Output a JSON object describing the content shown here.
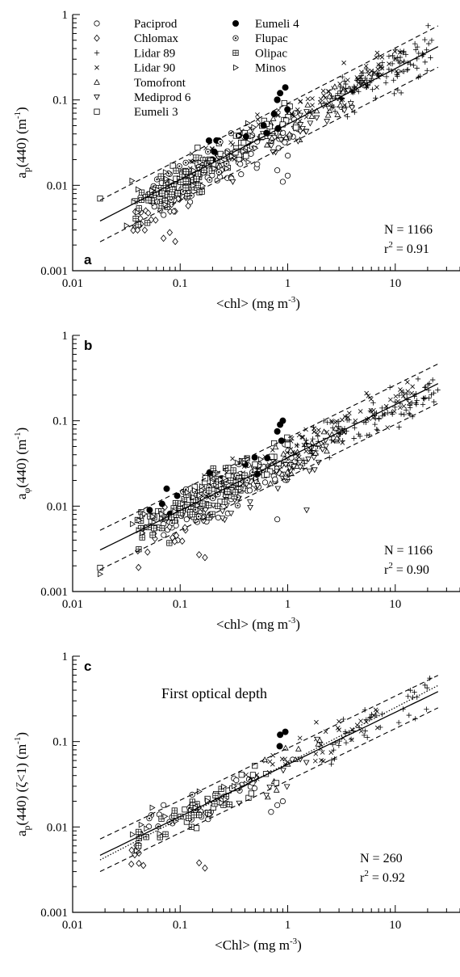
{
  "figure": {
    "panels": [
      {
        "letter": "a",
        "subtitle": "",
        "ylabel": {
          "main": "a",
          "sub": "p",
          "rest": "(440) (m",
          "sup": "-1",
          "close": ")"
        },
        "xlabel": {
          "main": "<chl> (mg m",
          "sup": "-3",
          "close": ")"
        },
        "stats": {
          "n": "N = 1166",
          "r2_pre": "r",
          "r2_sup": "2",
          "r2_post": " = 0.91"
        }
      },
      {
        "letter": "b",
        "subtitle": "",
        "ylabel": {
          "main": "a",
          "sub": "φ",
          "rest": "(440) (m",
          "sup": "-1",
          "close": ")"
        },
        "xlabel": {
          "main": "<chl> (mg m",
          "sup": "-3",
          "close": ")"
        },
        "stats": {
          "n": "N = 1166",
          "r2_pre": "r",
          "r2_sup": "2",
          "r2_post": " = 0.90"
        }
      },
      {
        "letter": "c",
        "subtitle": "First optical depth",
        "ylabel": {
          "main": "a",
          "sub": "p",
          "rest": "(440)  (ζ<1) (m",
          "sup": "-1",
          "close": ")"
        },
        "xlabel": {
          "main": "<Chl> (mg m",
          "sup": "-3",
          "close": ")"
        },
        "stats": {
          "n": "N = 260",
          "r2_pre": "r",
          "r2_sup": "2",
          "r2_post": " = 0.92"
        }
      }
    ],
    "legend": {
      "col1": [
        {
          "name": "Paciprod",
          "marker": "circle-open"
        },
        {
          "name": "Chlomax",
          "marker": "diamond-open"
        },
        {
          "name": "Lidar 89",
          "marker": "plus"
        },
        {
          "name": "Lidar 90",
          "marker": "cross"
        },
        {
          "name": "Tomofront",
          "marker": "triangle-up-open"
        },
        {
          "name": "Mediprod 6",
          "marker": "triangle-down-open"
        },
        {
          "name": "Eumeli 3",
          "marker": "square-open"
        }
      ],
      "col2": [
        {
          "name": "Eumeli 4",
          "marker": "circle-filled"
        },
        {
          "name": "Flupac",
          "marker": "circle-dotted"
        },
        {
          "name": "Olipac",
          "marker": "square-grid"
        },
        {
          "name": "Minos",
          "marker": "triangle-right-open"
        }
      ]
    }
  },
  "chart_data": [
    {
      "type": "scatter",
      "panel": "a",
      "xlabel": "<chl> (mg m-3)",
      "ylabel": "ap(440) (m-1)",
      "xscale": "log",
      "yscale": "log",
      "xlim": [
        0.01,
        40
      ],
      "ylim": [
        0.001,
        1
      ],
      "xticks": [
        0.01,
        0.1,
        1,
        10
      ],
      "xtick_labels": [
        "0.01",
        "0.1",
        "1",
        "10"
      ],
      "yticks": [
        0.001,
        0.01,
        0.1,
        1
      ],
      "ytick_labels": [
        "0.001",
        "0.01",
        "0.1",
        "1"
      ],
      "grid": false,
      "legend_position": "top-left",
      "fit": {
        "coef": 0.052,
        "exp": 0.65,
        "x_range": [
          0.018,
          25
        ],
        "style": "solid"
      },
      "confidence_band": {
        "factor": 1.75,
        "style": "dashed"
      },
      "n": 1166,
      "r2": 0.91,
      "series": [
        {
          "name": "Paciprod",
          "marker": "circle-open",
          "x_range": [
            0.04,
            1.3
          ],
          "resid_mean": -0.2,
          "points": 70,
          "highlights": [
            [
              0.9,
              0.011
            ],
            [
              0.8,
              0.015
            ],
            [
              1.0,
              0.013
            ],
            [
              0.3,
              0.012
            ]
          ]
        },
        {
          "name": "Chlomax",
          "marker": "diamond-open",
          "x_range": [
            0.035,
            0.12
          ],
          "resid_mean": -0.35,
          "points": 35,
          "highlights": [
            [
              0.08,
              0.0028
            ],
            [
              0.09,
              0.0022
            ],
            [
              0.07,
              0.0024
            ]
          ]
        },
        {
          "name": "Lidar 89",
          "marker": "plus",
          "x_range": [
            2.5,
            22
          ],
          "resid_mean": 0.0,
          "points": 110,
          "highlights": []
        },
        {
          "name": "Lidar 90",
          "marker": "cross",
          "x_range": [
            0.12,
            12
          ],
          "resid_mean": 0.12,
          "points": 120,
          "highlights": []
        },
        {
          "name": "Tomofront",
          "marker": "triangle-up-open",
          "x_range": [
            0.5,
            4
          ],
          "resid_mean": -0.05,
          "points": 30,
          "highlights": []
        },
        {
          "name": "Mediprod 6",
          "marker": "triangle-down-open",
          "x_range": [
            0.2,
            4
          ],
          "resid_mean": -0.15,
          "points": 40,
          "highlights": []
        },
        {
          "name": "Eumeli 3",
          "marker": "square-open",
          "x_range": [
            0.05,
            1.2
          ],
          "resid_mean": 0.05,
          "points": 55,
          "highlights": [
            [
              0.018,
              0.007
            ]
          ]
        },
        {
          "name": "Eumeli 4",
          "marker": "circle-filled",
          "x_range": [
            0.15,
            1.0
          ],
          "resid_mean": 0.2,
          "points": 12,
          "highlights": [
            [
              0.85,
              0.12
            ],
            [
              0.8,
              0.1
            ],
            [
              0.95,
              0.14
            ],
            [
              0.2,
              0.02
            ]
          ]
        },
        {
          "name": "Flupac",
          "marker": "circle-dotted",
          "x_range": [
            0.05,
            0.3
          ],
          "resid_mean": 0.0,
          "points": 30,
          "highlights": []
        },
        {
          "name": "Olipac",
          "marker": "square-grid",
          "x_range": [
            0.035,
            0.2
          ],
          "resid_mean": -0.1,
          "points": 70,
          "highlights": []
        },
        {
          "name": "Minos",
          "marker": "triangle-right-open",
          "x_range": [
            0.03,
            0.5
          ],
          "resid_mean": 0.05,
          "points": 40,
          "highlights": []
        }
      ]
    },
    {
      "type": "scatter",
      "panel": "b",
      "xlabel": "<chl> (mg m-3)",
      "ylabel": "aφ(440) (m-1)",
      "xscale": "log",
      "yscale": "log",
      "xlim": [
        0.01,
        40
      ],
      "ylim": [
        0.001,
        1
      ],
      "xticks": [
        0.01,
        0.1,
        1,
        10
      ],
      "xtick_labels": [
        "0.01",
        "0.1",
        "1",
        "10"
      ],
      "yticks": [
        0.001,
        0.01,
        0.1,
        1
      ],
      "ytick_labels": [
        "0.001",
        "0.01",
        "0.1",
        "1"
      ],
      "grid": false,
      "fit": {
        "coef": 0.037,
        "exp": 0.62,
        "x_range": [
          0.018,
          25
        ],
        "style": "solid"
      },
      "confidence_band": {
        "factor": 1.7,
        "style": "dashed"
      },
      "n": 1166,
      "r2": 0.9,
      "series": [
        {
          "name": "Paciprod",
          "marker": "circle-open",
          "x_range": [
            0.05,
            1.3
          ],
          "resid_mean": -0.12,
          "points": 70,
          "highlights": [
            [
              0.8,
              0.007
            ]
          ]
        },
        {
          "name": "Chlomax",
          "marker": "diamond-open",
          "x_range": [
            0.04,
            0.2
          ],
          "resid_mean": -0.3,
          "points": 30,
          "highlights": [
            [
              0.15,
              0.0027
            ],
            [
              0.17,
              0.0025
            ]
          ]
        },
        {
          "name": "Lidar 89",
          "marker": "plus",
          "x_range": [
            1.2,
            25
          ],
          "resid_mean": -0.05,
          "points": 110,
          "highlights": []
        },
        {
          "name": "Lidar 90",
          "marker": "cross",
          "x_range": [
            0.15,
            15
          ],
          "resid_mean": 0.1,
          "points": 120,
          "highlights": []
        },
        {
          "name": "Tomofront",
          "marker": "triangle-up-open",
          "x_range": [
            0.3,
            3
          ],
          "resid_mean": -0.05,
          "points": 25,
          "highlights": []
        },
        {
          "name": "Mediprod 6",
          "marker": "triangle-down-open",
          "x_range": [
            0.2,
            2.5
          ],
          "resid_mean": -0.2,
          "points": 40,
          "highlights": [
            [
              1.5,
              0.009
            ]
          ]
        },
        {
          "name": "Eumeli 3",
          "marker": "square-open",
          "x_range": [
            0.05,
            1.0
          ],
          "resid_mean": 0.05,
          "points": 50,
          "highlights": [
            [
              0.018,
              0.0019
            ]
          ]
        },
        {
          "name": "Eumeli 4",
          "marker": "circle-filled",
          "x_range": [
            0.05,
            0.9
          ],
          "resid_mean": 0.25,
          "points": 12,
          "highlights": [
            [
              0.9,
              0.1
            ],
            [
              0.85,
              0.09
            ],
            [
              0.8,
              0.075
            ],
            [
              0.052,
              0.009
            ]
          ]
        },
        {
          "name": "Flupac",
          "marker": "circle-dotted",
          "x_range": [
            0.08,
            0.5
          ],
          "resid_mean": 0.0,
          "points": 30,
          "highlights": []
        },
        {
          "name": "Olipac",
          "marker": "square-grid",
          "x_range": [
            0.04,
            0.4
          ],
          "resid_mean": 0.0,
          "points": 80,
          "highlights": []
        },
        {
          "name": "Minos",
          "marker": "triangle-right-open",
          "x_range": [
            0.035,
            0.6
          ],
          "resid_mean": 0.1,
          "points": 40,
          "highlights": [
            [
              0.018,
              0.0016
            ]
          ]
        }
      ]
    },
    {
      "type": "scatter",
      "panel": "c",
      "title": "First optical depth",
      "xlabel": "<Chl> (mg m-3)",
      "ylabel": "ap(440) (ζ<1) (m-1)",
      "xscale": "log",
      "yscale": "log",
      "xlim": [
        0.01,
        40
      ],
      "ylim": [
        0.001,
        1
      ],
      "xticks": [
        0.01,
        0.1,
        1,
        10
      ],
      "xtick_labels": [
        "0.01",
        "0.1",
        "1",
        "10"
      ],
      "yticks": [
        0.001,
        0.01,
        0.1,
        1
      ],
      "ytick_labels": [
        "0.001",
        "0.01",
        "0.1",
        "1"
      ],
      "grid": false,
      "fit": {
        "coef": 0.054,
        "exp": 0.61,
        "x_range": [
          0.018,
          25
        ],
        "style": "solid"
      },
      "fit2": {
        "coef": 0.056,
        "exp": 0.65,
        "x_range": [
          0.018,
          25
        ],
        "style": "dotted"
      },
      "confidence_band": {
        "factor": 1.55,
        "style": "dashed"
      },
      "n": 260,
      "r2": 0.92,
      "series": [
        {
          "name": "Paciprod",
          "marker": "circle-open",
          "x_range": [
            0.04,
            1.2
          ],
          "resid_mean": -0.1,
          "points": 25,
          "highlights": [
            [
              0.7,
              0.015
            ],
            [
              0.8,
              0.018
            ],
            [
              0.9,
              0.02
            ]
          ]
        },
        {
          "name": "Chlomax",
          "marker": "diamond-open",
          "x_range": [
            0.035,
            0.05
          ],
          "resid_mean": -0.3,
          "points": 10,
          "highlights": [
            [
              0.15,
              0.0038
            ],
            [
              0.17,
              0.0033
            ]
          ]
        },
        {
          "name": "Lidar 89",
          "marker": "plus",
          "x_range": [
            2.5,
            22
          ],
          "resid_mean": 0.0,
          "points": 40,
          "highlights": []
        },
        {
          "name": "Lidar 90",
          "marker": "cross",
          "x_range": [
            0.4,
            8
          ],
          "resid_mean": 0.1,
          "points": 40,
          "highlights": [
            [
              1.3,
              0.11
            ]
          ]
        },
        {
          "name": "Tomofront",
          "marker": "triangle-up-open",
          "x_range": [
            0.6,
            2
          ],
          "resid_mean": 0.0,
          "points": 10,
          "highlights": []
        },
        {
          "name": "Mediprod 6",
          "marker": "triangle-down-open",
          "x_range": [
            0.3,
            2
          ],
          "resid_mean": -0.1,
          "points": 10,
          "highlights": []
        },
        {
          "name": "Eumeli 3",
          "marker": "square-open",
          "x_range": [
            0.1,
            0.8
          ],
          "resid_mean": 0.0,
          "points": 20,
          "highlights": []
        },
        {
          "name": "Eumeli 4",
          "marker": "circle-filled",
          "x_range": [
            0.8,
            1.0
          ],
          "resid_mean": 0.4,
          "points": 1,
          "highlights": [
            [
              0.85,
              0.12
            ],
            [
              0.95,
              0.13
            ]
          ]
        },
        {
          "name": "Flupac",
          "marker": "circle-dotted",
          "x_range": [
            0.04,
            0.2
          ],
          "resid_mean": 0.0,
          "points": 12,
          "highlights": []
        },
        {
          "name": "Olipac",
          "marker": "square-grid",
          "x_range": [
            0.04,
            0.3
          ],
          "resid_mean": 0.0,
          "points": 25,
          "highlights": []
        },
        {
          "name": "Minos",
          "marker": "triangle-right-open",
          "x_range": [
            0.035,
            0.5
          ],
          "resid_mean": 0.1,
          "points": 18,
          "highlights": []
        }
      ]
    }
  ]
}
